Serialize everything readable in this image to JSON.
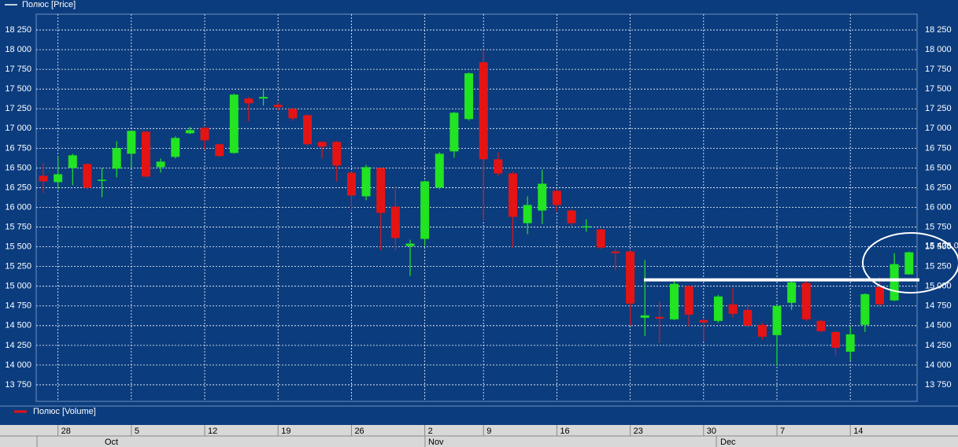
{
  "chart_data": {
    "type": "candlestick",
    "legend": "Полюс [Price]",
    "volume_legend": "Полюс [Volume]",
    "last_price_label": "15 426,0",
    "up_color": "#22e422",
    "down_color": "#e41414",
    "grid": true,
    "annotation_line": 15080,
    "categories": [
      null,
      "28",
      null,
      null,
      null,
      null,
      "5",
      null,
      null,
      null,
      null,
      "12",
      null,
      null,
      null,
      null,
      "19",
      null,
      null,
      null,
      null,
      "26",
      null,
      null,
      null,
      null,
      "2",
      null,
      null,
      null,
      "9",
      null,
      null,
      null,
      null,
      "16",
      null,
      null,
      null,
      null,
      "23",
      null,
      null,
      null,
      null,
      "30",
      null,
      null,
      null,
      null,
      "7",
      null,
      null,
      null,
      null,
      "14",
      null,
      null,
      null,
      null
    ],
    "months": [
      "Oct",
      "Nov",
      "Dec"
    ],
    "open": [
      16400,
      16320,
      16500,
      16550,
      16340,
      16490,
      16680,
      16960,
      16510,
      16640,
      16940,
      17010,
      16800,
      16690,
      17380,
      17380,
      17300,
      17250,
      17170,
      16830,
      16830,
      16440,
      16140,
      16500,
      16010,
      15510,
      15600,
      16250,
      16710,
      17120,
      17840,
      16610,
      16430,
      15800,
      15960,
      16210,
      15960,
      15750,
      15720,
      15440,
      15440,
      14600,
      14610,
      14580,
      15000,
      14570,
      14560,
      14770,
      14700,
      14510,
      14380,
      14790,
      15040,
      14560,
      14420,
      14170,
      14510,
      14990,
      14820,
      15150
    ],
    "high": [
      16560,
      16650,
      16680,
      16560,
      16500,
      16840,
      16980,
      16970,
      16620,
      16900,
      17020,
      17020,
      16810,
      17440,
      17400,
      17510,
      17330,
      17260,
      17180,
      16840,
      16840,
      16450,
      16540,
      16500,
      16270,
      15590,
      16340,
      16700,
      17210,
      17710,
      18000,
      16700,
      16450,
      16140,
      16480,
      16230,
      15980,
      15850,
      15730,
      15470,
      15450,
      15330,
      14810,
      15070,
      15010,
      14590,
      14890,
      14980,
      14770,
      14530,
      14760,
      15060,
      15060,
      14570,
      14430,
      14490,
      14910,
      15120,
      15420,
      15440
    ],
    "low": [
      16180,
      16230,
      16280,
      16230,
      16130,
      16380,
      16500,
      16380,
      16440,
      16620,
      16930,
      16730,
      16640,
      16680,
      17090,
      17290,
      17230,
      17100,
      16780,
      16620,
      16330,
      15960,
      16090,
      15460,
      15450,
      15130,
      15510,
      16230,
      16630,
      17100,
      15830,
      16400,
      15490,
      15660,
      15790,
      15950,
      15760,
      15690,
      15470,
      15200,
      14500,
      14370,
      14280,
      14570,
      14490,
      14300,
      14540,
      14600,
      14480,
      14320,
      13990,
      14700,
      14560,
      14420,
      14120,
      14060,
      14420,
      14740,
      14810,
      15150
    ],
    "close": [
      16330,
      16420,
      16660,
      16250,
      16350,
      16750,
      16970,
      16390,
      16580,
      16880,
      16980,
      16850,
      16650,
      17430,
      17320,
      17400,
      17270,
      17130,
      16800,
      16770,
      16530,
      16150,
      16510,
      15930,
      15610,
      15540,
      16330,
      16680,
      17200,
      17700,
      16610,
      16430,
      15880,
      16030,
      16300,
      16030,
      15800,
      15760,
      15490,
      15420,
      14780,
      14630,
      14590,
      15030,
      14640,
      14540,
      14870,
      14650,
      14500,
      14360,
      14750,
      15050,
      14580,
      14430,
      14220,
      14390,
      14900,
      14770,
      15280,
      15430
    ],
    "ylim": [
      13540,
      18450
    ],
    "yticks": [
      {
        "value": 13750,
        "label": "13 750"
      },
      {
        "value": 14000,
        "label": "14 000"
      },
      {
        "value": 14250,
        "label": "14 250"
      },
      {
        "value": 14500,
        "label": "14 500"
      },
      {
        "value": 14750,
        "label": "14 750"
      },
      {
        "value": 15000,
        "label": "15 000"
      },
      {
        "value": 15250,
        "label": "15 250"
      },
      {
        "value": 15500,
        "label": "15 500"
      },
      {
        "value": 15750,
        "label": "15 750"
      },
      {
        "value": 16000,
        "label": "16 000"
      },
      {
        "value": 16250,
        "label": "16 250"
      },
      {
        "value": 16500,
        "label": "16 500"
      },
      {
        "value": 16750,
        "label": "16 750"
      },
      {
        "value": 17000,
        "label": "17 000"
      },
      {
        "value": 17250,
        "label": "17 250"
      },
      {
        "value": 17500,
        "label": "17 500"
      },
      {
        "value": 17750,
        "label": "17 750"
      },
      {
        "value": 18000,
        "label": "18 000"
      },
      {
        "value": 18250,
        "label": "18 250"
      }
    ]
  }
}
